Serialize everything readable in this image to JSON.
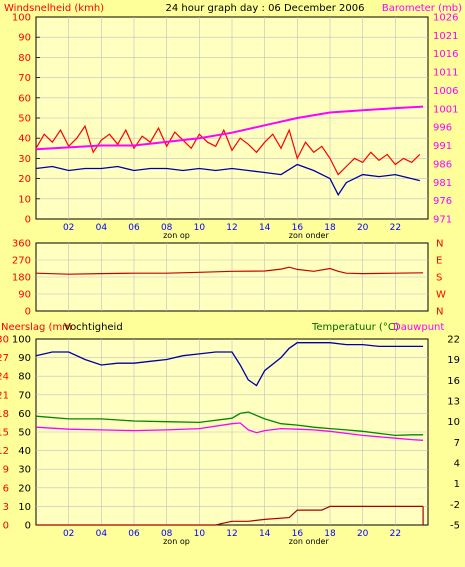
{
  "header": {
    "left_label": "Windsnelheid (kmh)",
    "title": "24 hour graph day : 06 December 2006",
    "right_label": "Barometer (mb)"
  },
  "colors": {
    "background": "#ffff99",
    "plot_bg": "#ffffc0",
    "grid": "#c0c0c0",
    "wind": "#ff0000",
    "wind_avg": "#0000aa",
    "barometer": "#ff00ff",
    "direction": "#cc0000",
    "humidity": "#0000aa",
    "temperature": "#008800",
    "dewpoint": "#ff00ff",
    "rain": "#aa0000",
    "axis_text": "#0000ff",
    "label_red": "#ff0000",
    "label_magenta": "#ff00ff",
    "label_green": "#006600",
    "label_dark": "#000000"
  },
  "x_axis": {
    "hours": [
      "02",
      "04",
      "06",
      "08",
      "10",
      "12",
      "14",
      "16",
      "18",
      "20",
      "22"
    ],
    "sunrise_label": "zon op",
    "sunset_label": "zon onder",
    "sunrise_hour": 8.6,
    "sunset_hour": 16.7
  },
  "chart_data": [
    {
      "type": "line",
      "panel": "wind-barometer",
      "left_axis": {
        "label": "Windsnelheid (kmh)",
        "ticks": [
          0,
          10,
          20,
          30,
          40,
          50,
          60,
          70,
          80,
          90,
          100
        ],
        "ylim": [
          0,
          100
        ]
      },
      "right_axis": {
        "label": "Barometer (mb)",
        "ticks": [
          971,
          976,
          981,
          986,
          991,
          996,
          1001,
          1006,
          1011,
          1016,
          1021,
          1026
        ],
        "ylim": [
          971,
          1026
        ]
      },
      "xlim": [
        0,
        24
      ],
      "series": [
        {
          "name": "wind_gust",
          "axis": "left",
          "x": [
            0,
            0.5,
            1,
            1.5,
            2,
            2.5,
            3,
            3.5,
            4,
            4.5,
            5,
            5.5,
            6,
            6.5,
            7,
            7.5,
            8,
            8.5,
            9,
            9.5,
            10,
            10.5,
            11,
            11.5,
            12,
            12.5,
            13,
            13.5,
            14,
            14.5,
            15,
            15.5,
            16,
            16.5,
            17,
            17.5,
            18,
            18.5,
            19,
            19.5,
            20,
            20.5,
            21,
            21.5,
            22,
            22.5,
            23,
            23.5
          ],
          "y": [
            35,
            42,
            38,
            44,
            36,
            40,
            46,
            33,
            39,
            42,
            37,
            44,
            35,
            41,
            38,
            45,
            36,
            43,
            39,
            35,
            42,
            38,
            36,
            44,
            34,
            40,
            37,
            33,
            38,
            42,
            35,
            44,
            30,
            38,
            33,
            36,
            30,
            22,
            26,
            30,
            28,
            33,
            29,
            32,
            27,
            30,
            28,
            32
          ]
        },
        {
          "name": "wind_avg",
          "axis": "left",
          "x": [
            0,
            1,
            2,
            3,
            4,
            5,
            6,
            7,
            8,
            9,
            10,
            11,
            12,
            13,
            14,
            15,
            16,
            17,
            18,
            18.5,
            19,
            20,
            21,
            22,
            23,
            23.5
          ],
          "y": [
            25,
            26,
            24,
            25,
            25,
            26,
            24,
            25,
            25,
            24,
            25,
            24,
            25,
            24,
            23,
            22,
            27,
            24,
            20,
            12,
            18,
            22,
            21,
            22,
            20,
            19
          ]
        },
        {
          "name": "barometer",
          "axis": "right",
          "x": [
            0,
            2,
            4,
            6,
            8,
            10,
            12,
            14,
            16,
            18,
            20,
            22,
            23.7
          ],
          "y": [
            990,
            990.5,
            991,
            991,
            992,
            993,
            994.5,
            996.5,
            998.5,
            1000,
            1000.6,
            1001.2,
            1001.6
          ]
        }
      ]
    },
    {
      "type": "line",
      "panel": "wind-direction",
      "left_axis": {
        "ticks": [
          0,
          90,
          180,
          270,
          360
        ],
        "ylim": [
          0,
          360
        ]
      },
      "right_axis": {
        "ticks": [
          "N",
          "E",
          "S",
          "W",
          "N"
        ]
      },
      "xlim": [
        0,
        24
      ],
      "series": [
        {
          "name": "direction",
          "axis": "left",
          "x": [
            0,
            2,
            4,
            6,
            8,
            10,
            12,
            14,
            15,
            15.5,
            16,
            17,
            18,
            18.5,
            19,
            20,
            22,
            23.7
          ],
          "y": [
            200,
            195,
            198,
            200,
            200,
            205,
            210,
            212,
            222,
            232,
            220,
            210,
            225,
            210,
            200,
            198,
            200,
            202
          ]
        }
      ]
    },
    {
      "type": "line",
      "panel": "humidity-temperature-rain",
      "left_axis_rain": {
        "label": "Neerslag (mm",
        "ticks": [
          0,
          3,
          6,
          9,
          12,
          15,
          18,
          21,
          24,
          27,
          30
        ],
        "ylim": [
          0,
          30
        ]
      },
      "left_axis_humidity": {
        "label": "Vochtigheid",
        "ticks": [
          0,
          10,
          20,
          30,
          40,
          50,
          60,
          70,
          80,
          90,
          100
        ],
        "ylim": [
          0,
          100
        ]
      },
      "right_axis": {
        "label": "Temperatuur (°C)",
        "label2": "Dauwpunt",
        "ticks": [
          -5,
          -2,
          1,
          4,
          7,
          10,
          13,
          16,
          19,
          22
        ],
        "ylim": [
          -5,
          22
        ]
      },
      "xlim": [
        0,
        24
      ],
      "series": [
        {
          "name": "humidity",
          "axis": "humidity",
          "x": [
            0,
            1,
            2,
            3,
            4,
            5,
            6,
            7,
            8,
            9,
            10,
            11,
            12,
            12.5,
            13,
            13.5,
            14,
            15,
            15.5,
            16,
            17,
            18,
            19,
            20,
            21,
            22,
            23,
            23.7
          ],
          "y": [
            91,
            93,
            93,
            89,
            86,
            87,
            87,
            88,
            89,
            91,
            92,
            93,
            93,
            86,
            78,
            75,
            83,
            90,
            95,
            98,
            98,
            98,
            97,
            97,
            96,
            96,
            96,
            96
          ]
        },
        {
          "name": "temperature",
          "axis": "right",
          "x": [
            0,
            2,
            4,
            6,
            8,
            10,
            12,
            12.5,
            13,
            14,
            15,
            16,
            17,
            18,
            19,
            20,
            21,
            22,
            23,
            23.7
          ],
          "y": [
            10.8,
            10.4,
            10.4,
            10.1,
            10.0,
            9.9,
            10.5,
            11.2,
            11.4,
            10.4,
            9.7,
            9.5,
            9.2,
            9.0,
            8.8,
            8.6,
            8.3,
            8.0,
            8.1,
            8.1
          ]
        },
        {
          "name": "dewpoint",
          "axis": "right",
          "x": [
            0,
            2,
            4,
            6,
            8,
            10,
            12,
            12.5,
            13,
            13.5,
            14,
            15,
            16,
            17,
            18,
            19,
            20,
            21,
            22,
            23,
            23.7
          ],
          "y": [
            9.2,
            8.9,
            8.8,
            8.7,
            8.8,
            9.0,
            9.7,
            9.8,
            8.8,
            8.4,
            8.7,
            9.0,
            8.9,
            8.8,
            8.6,
            8.3,
            8.0,
            7.8,
            7.6,
            7.4,
            7.3
          ]
        },
        {
          "name": "rain",
          "axis": "rain",
          "x": [
            0,
            11,
            11.5,
            12,
            13,
            14,
            15.5,
            16,
            17.5,
            18,
            20,
            23.7
          ],
          "y": [
            0,
            0,
            0.3,
            0.6,
            0.6,
            0.9,
            1.2,
            2.4,
            2.4,
            3.0,
            3.0,
            3.0
          ]
        }
      ]
    }
  ],
  "labels": {
    "neerslag": "Neerslag (mm",
    "vochtigheid": "Vochtigheid",
    "temperatuur": "Temperatuur (°C)",
    "dauwpunt": "Dauwpunt"
  }
}
